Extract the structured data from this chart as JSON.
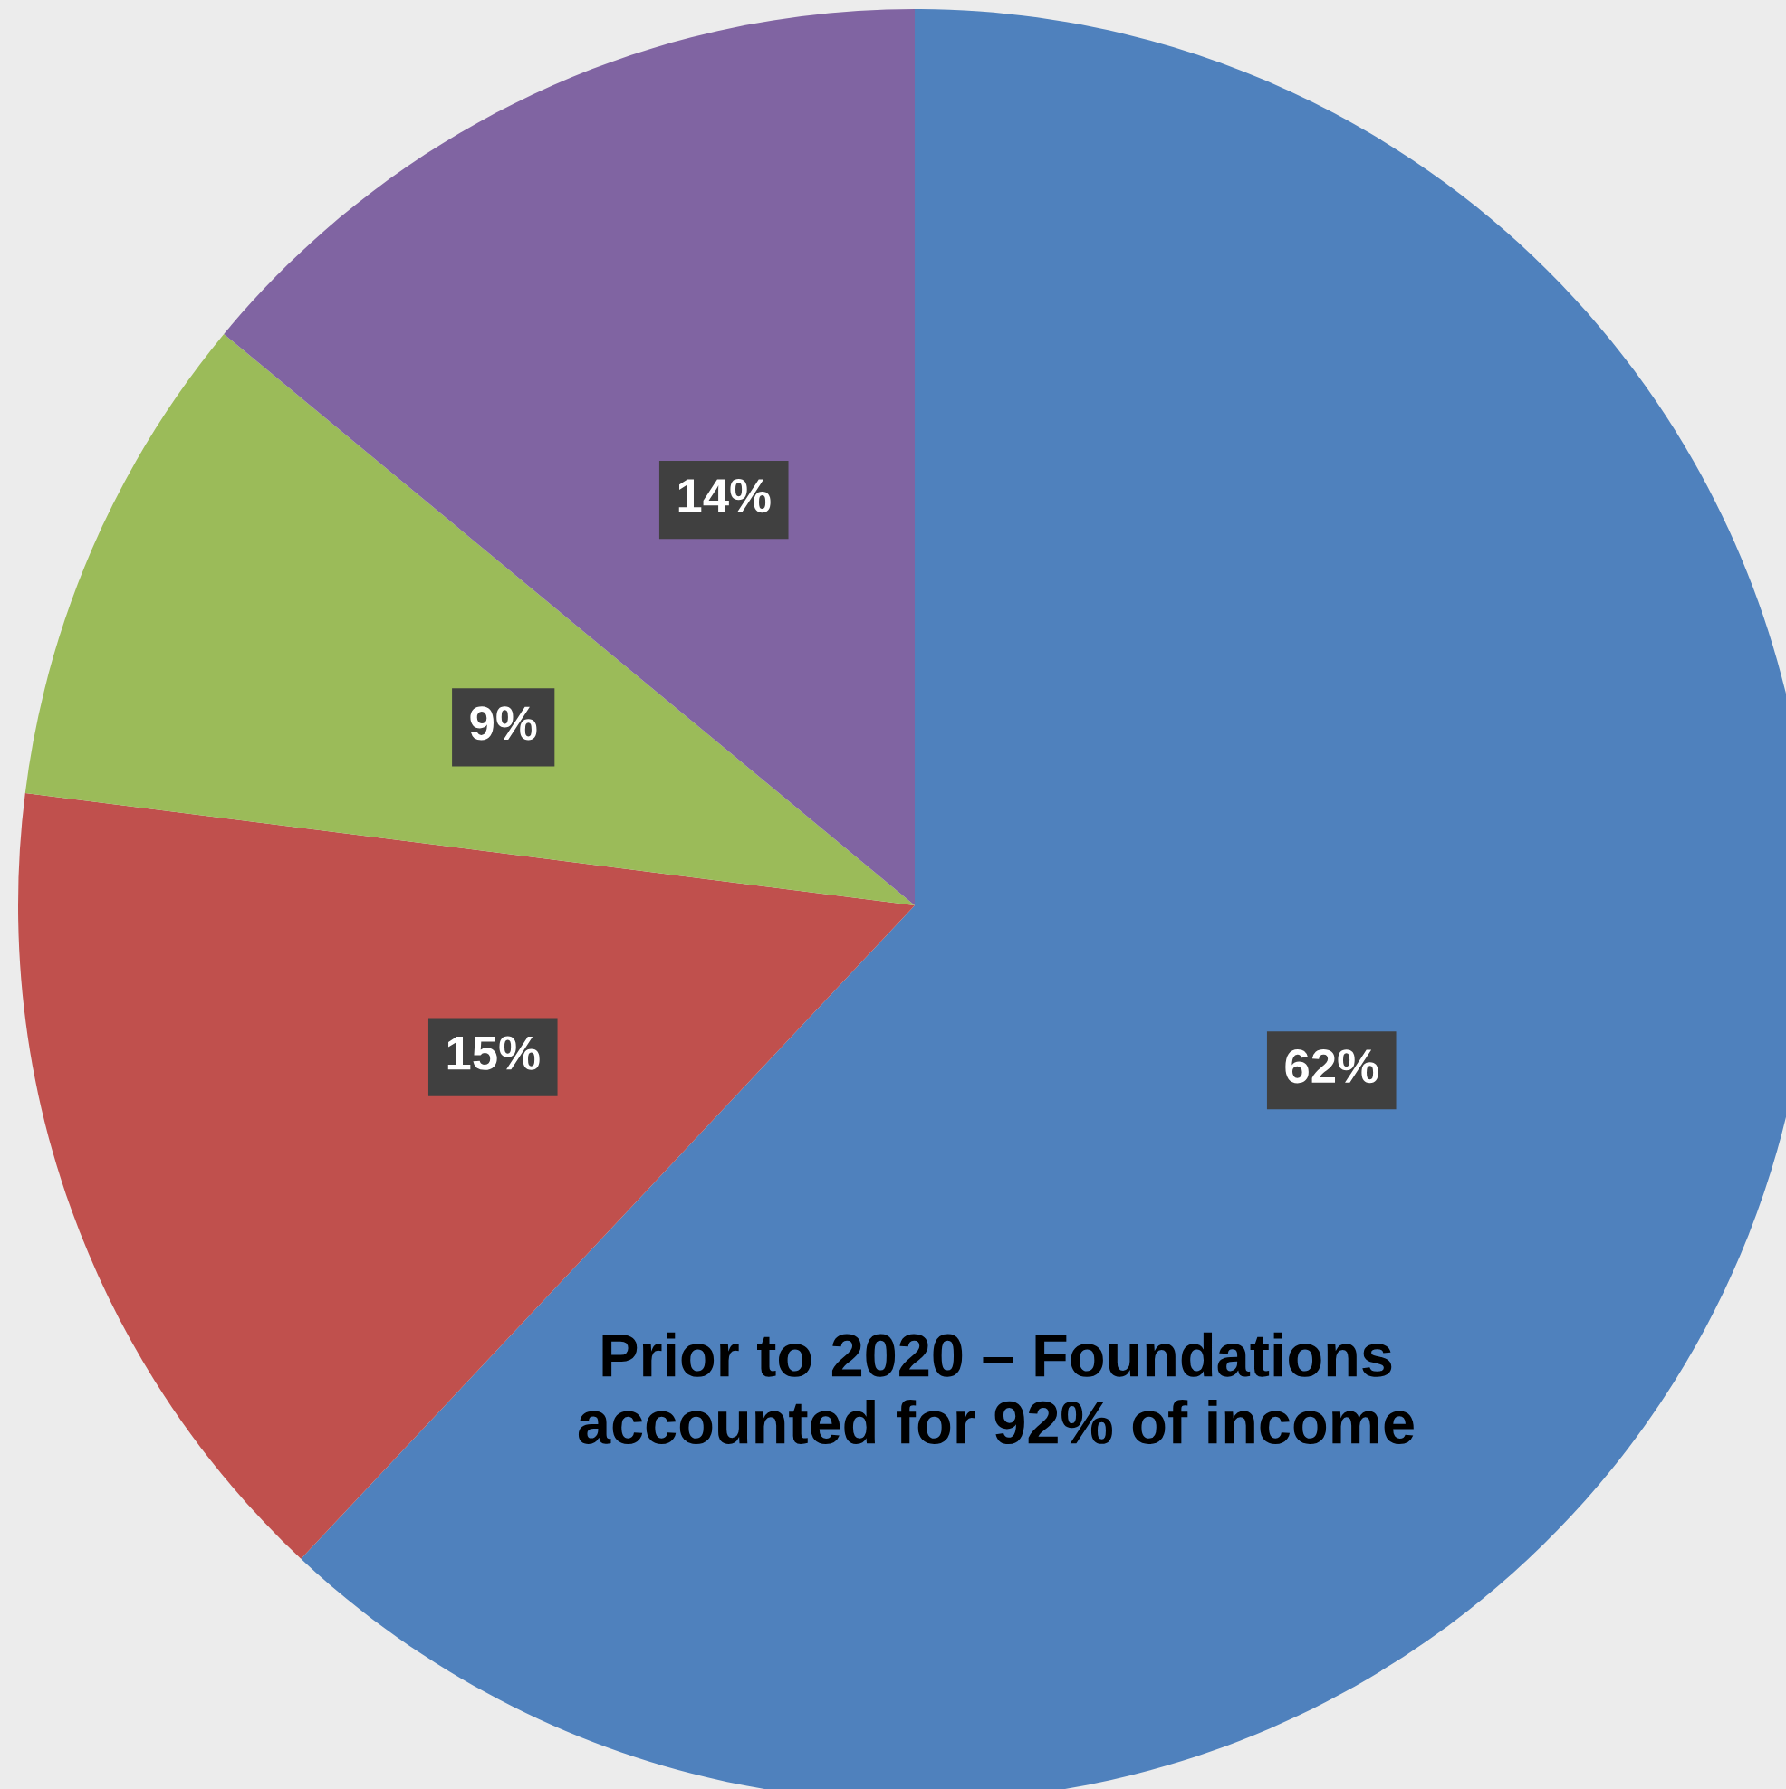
{
  "chart_data": {
    "type": "pie",
    "categories": [
      null,
      null,
      null,
      null
    ],
    "values": [
      62,
      15,
      9,
      14
    ],
    "colors": [
      "#4f81bd",
      "#c0504d",
      "#9bbb59",
      "#8064a2"
    ],
    "data_labels": true,
    "value_labels": [
      "62%",
      "15%",
      "9%",
      "14%"
    ],
    "annotations": [
      "Prior to 2020 – Foundations\naccounted for 92% of income"
    ]
  }
}
